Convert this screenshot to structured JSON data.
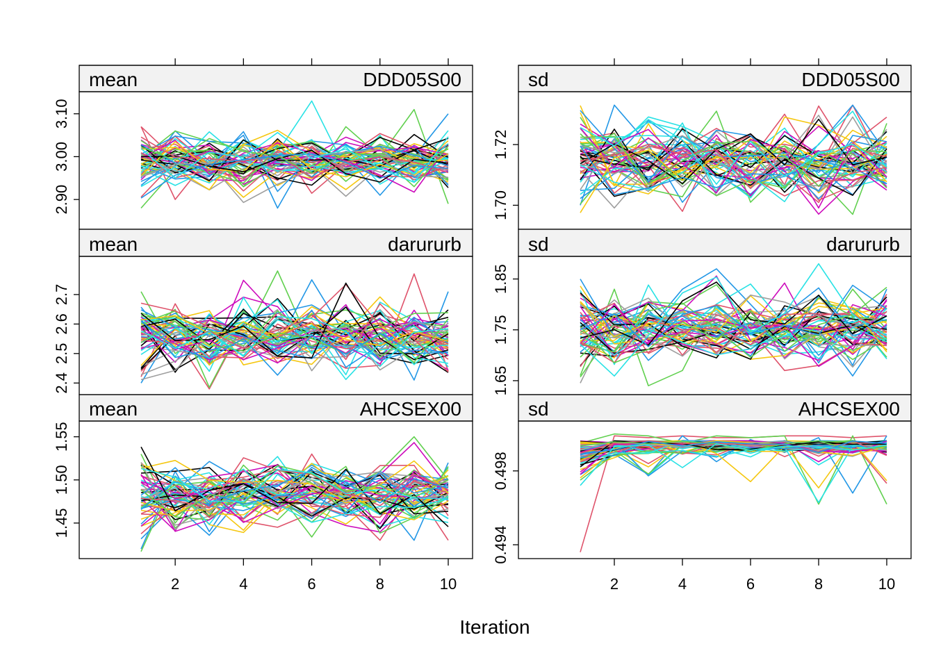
{
  "colors": [
    "#000000",
    "#DF536B",
    "#61D04F",
    "#2297E6",
    "#28E2E5",
    "#CD0BBC",
    "#F5C710",
    "#9E9E9E"
  ],
  "xlabel": "Iteration",
  "chart_data": [
    {
      "type": "line",
      "stat": "mean",
      "variable": "DDD05S00",
      "x": [
        1,
        2,
        3,
        4,
        5,
        6,
        7,
        8,
        9,
        10
      ],
      "x_ticks": [
        "2",
        "4",
        "6",
        "8",
        "10"
      ],
      "y_ticks": [
        "2.90",
        "3.00",
        "3.10"
      ],
      "ylim": [
        2.837,
        3.145
      ],
      "n_series": 60,
      "grid": false,
      "series_example": [
        {
          "values": [
            3.07,
            2.9,
            3.0,
            2.92,
            2.99,
            3.01,
            2.97,
            3.0,
            2.98,
            3.03
          ]
        },
        {
          "values": [
            2.88,
            2.97,
            3.02,
            2.96,
            3.0,
            2.95,
            3.07,
            3.0,
            3.11,
            2.89
          ]
        },
        {
          "values": [
            2.95,
            3.06,
            2.99,
            3.05,
            2.88,
            3.02,
            3.0,
            2.91,
            3.0,
            3.1
          ]
        },
        {
          "values": [
            3.0,
            2.98,
            2.96,
            3.03,
            3.01,
            3.13,
            2.97,
            3.05,
            2.94,
            3.0
          ]
        }
      ]
    },
    {
      "type": "line",
      "stat": "mean",
      "variable": "darururb",
      "x": [
        1,
        2,
        3,
        4,
        5,
        6,
        7,
        8,
        9,
        10
      ],
      "x_ticks": [
        "2",
        "4",
        "6",
        "8",
        "10"
      ],
      "y_ticks": [
        "2.4",
        "2.5",
        "2.6",
        "2.7"
      ],
      "ylim": [
        2.37,
        2.82
      ],
      "n_series": 60,
      "grid": false,
      "series_example": [
        {
          "values": [
            2.44,
            2.56,
            2.38,
            2.6,
            2.47,
            2.51,
            2.45,
            2.46,
            2.77,
            2.44
          ]
        },
        {
          "values": [
            2.71,
            2.5,
            2.57,
            2.55,
            2.78,
            2.52,
            2.6,
            2.54,
            2.48,
            2.58
          ]
        },
        {
          "values": [
            2.4,
            2.59,
            2.49,
            2.64,
            2.53,
            2.75,
            2.56,
            2.62,
            2.41,
            2.71
          ]
        }
      ]
    },
    {
      "type": "line",
      "stat": "mean",
      "variable": "AHCSEX00",
      "x": [
        1,
        2,
        3,
        4,
        5,
        6,
        7,
        8,
        9,
        10
      ],
      "x_ticks": [
        "2",
        "4",
        "6",
        "8",
        "10"
      ],
      "y_ticks": [
        "1.45",
        "1.50",
        "1.55"
      ],
      "ylim": [
        1.412,
        1.565
      ],
      "n_series": 60,
      "grid": false,
      "series_example": [
        {
          "values": [
            1.52,
            1.48,
            1.47,
            1.49,
            1.46,
            1.53,
            1.47,
            1.43,
            1.49,
            1.43
          ]
        },
        {
          "values": [
            1.53,
            1.45,
            1.5,
            1.47,
            1.48,
            1.46,
            1.49,
            1.51,
            1.55,
            1.5
          ]
        },
        {
          "values": [
            1.42,
            1.51,
            1.44,
            1.5,
            1.47,
            1.5,
            1.46,
            1.48,
            1.43,
            1.52
          ]
        }
      ]
    },
    {
      "type": "line",
      "stat": "sd",
      "variable": "DDD05S00",
      "x": [
        1,
        2,
        3,
        4,
        5,
        6,
        7,
        8,
        9,
        10
      ],
      "x_ticks": [
        "2",
        "4",
        "6",
        "8",
        "10"
      ],
      "y_ticks": [
        "1.70",
        "1.72"
      ],
      "ylim": [
        1.693,
        1.7365
      ],
      "n_series": 60,
      "grid": false,
      "series_example": [
        {
          "values": [
            1.721,
            1.704,
            1.713,
            1.698,
            1.722,
            1.715,
            1.73,
            1.712,
            1.733,
            1.711
          ]
        },
        {
          "values": [
            1.729,
            1.712,
            1.706,
            1.716,
            1.731,
            1.701,
            1.712,
            1.709,
            1.697,
            1.727
          ]
        },
        {
          "values": [
            1.7,
            1.733,
            1.72,
            1.701,
            1.714,
            1.718,
            1.711,
            1.72,
            1.733,
            1.717
          ]
        }
      ]
    },
    {
      "type": "line",
      "stat": "sd",
      "variable": "darururb",
      "x": [
        1,
        2,
        3,
        4,
        5,
        6,
        7,
        8,
        9,
        10
      ],
      "x_ticks": [
        "2",
        "4",
        "6",
        "8",
        "10"
      ],
      "y_ticks": [
        "1.65",
        "1.75",
        "1.85"
      ],
      "ylim": [
        1.628,
        1.889
      ],
      "n_series": 60,
      "grid": false,
      "series_example": [
        {
          "values": [
            1.82,
            1.75,
            1.79,
            1.7,
            1.78,
            1.75,
            1.67,
            1.68,
            1.72,
            1.82
          ]
        },
        {
          "values": [
            1.66,
            1.83,
            1.64,
            1.67,
            1.8,
            1.74,
            1.77,
            1.73,
            1.83,
            1.75
          ]
        },
        {
          "values": [
            1.72,
            1.78,
            1.75,
            1.83,
            1.87,
            1.8,
            1.73,
            1.79,
            1.68,
            1.83
          ]
        }
      ]
    },
    {
      "type": "line",
      "stat": "sd",
      "variable": "AHCSEX00",
      "x": [
        1,
        2,
        3,
        4,
        5,
        6,
        7,
        8,
        9,
        10
      ],
      "x_ticks": [
        "2",
        "4",
        "6",
        "8",
        "10"
      ],
      "y_ticks": [
        "0.494",
        "0.498"
      ],
      "ylim": [
        0.4934,
        0.50055
      ],
      "n_series": 60,
      "grid": false,
      "series_example": [
        {
          "values": [
            0.4936,
            0.4999,
            0.4998,
            0.4999,
            0.4998,
            0.4998,
            0.4999,
            0.4999,
            0.4998,
            0.4999
          ]
        },
        {
          "values": [
            0.4995,
            0.5,
            0.4999,
            0.4995,
            0.4999,
            0.4998,
            0.4999,
            0.4962,
            0.4999,
            0.4962
          ]
        },
        {
          "values": [
            0.4978,
            0.4989,
            0.4978,
            0.4999,
            0.4985,
            0.4997,
            0.499,
            0.4998,
            0.4968,
            0.4999
          ]
        }
      ]
    }
  ]
}
